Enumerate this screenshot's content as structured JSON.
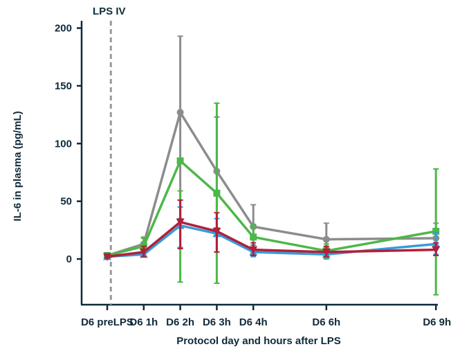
{
  "chart_data": {
    "type": "line",
    "title": "",
    "xlabel": "Protocol day and hours after LPS",
    "ylabel": "IL-6 in plasma (pg/mL)",
    "x": [
      0,
      1,
      2,
      3,
      4,
      6,
      9
    ],
    "x_tick_labels": [
      "D6 preLPS",
      "D6 1h",
      "D6 2h",
      "D6 3h",
      "D6 4h",
      "D6 6h",
      "D6 9h"
    ],
    "xlim": [
      0,
      9
    ],
    "ylim": [
      -40,
      200
    ],
    "yticks": [
      0,
      50,
      100,
      150,
      200
    ],
    "grid": false,
    "legend": "none",
    "annotations": [
      {
        "text": "LPS IV",
        "x": 0.1,
        "style": "dashed-vertical-line"
      }
    ],
    "series": [
      {
        "color": "#8c8c8c",
        "marker": "circle",
        "values": [
          3,
          13,
          127,
          76,
          28,
          17,
          18
        ],
        "err_low": [
          2,
          5,
          35,
          27,
          20,
          10,
          14
        ],
        "err_high": [
          4,
          19,
          193,
          123,
          47,
          31,
          31
        ]
      },
      {
        "color": "#4cb848",
        "marker": "square",
        "values": [
          3,
          11,
          85,
          57,
          19,
          7,
          24
        ],
        "err_low": [
          2,
          5,
          -20,
          -21,
          6,
          0,
          -31
        ],
        "err_high": [
          5,
          18,
          59,
          135,
          30,
          13,
          78
        ]
      },
      {
        "color": "#3a9ad9",
        "marker": "triangle-up",
        "values": [
          2,
          4,
          29,
          22,
          6,
          4,
          13
        ],
        "err_low": [
          1,
          2,
          10,
          6,
          2,
          1,
          4
        ],
        "err_high": [
          4,
          8,
          45,
          35,
          12,
          8,
          23
        ]
      },
      {
        "color": "#b0203a",
        "marker": "triangle-down",
        "values": [
          2,
          6,
          32,
          24,
          8,
          6,
          8
        ],
        "err_low": [
          1,
          2,
          9,
          6,
          3,
          2,
          3
        ],
        "err_high": [
          4,
          11,
          51,
          40,
          14,
          11,
          14
        ]
      }
    ]
  }
}
